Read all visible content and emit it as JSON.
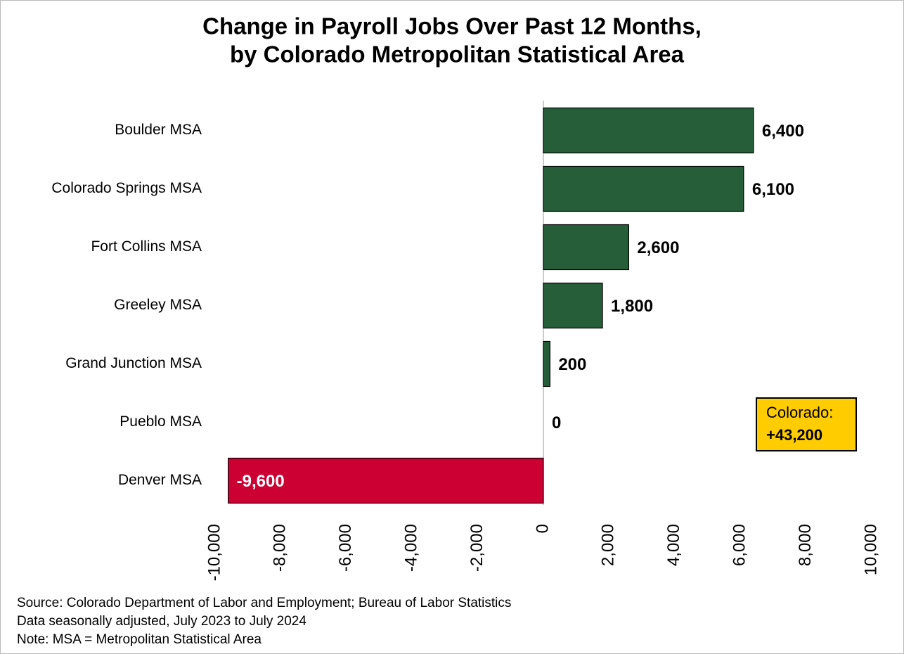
{
  "chart_data": {
    "type": "hbar",
    "title": [
      "Change in Payroll Jobs Over Past 12 Months,",
      "by Colorado Metropolitan Statistical Area"
    ],
    "categories": [
      "Boulder MSA",
      "Colorado Springs MSA",
      "Fort Collins MSA",
      "Greeley MSA",
      "Grand Junction MSA",
      "Pueblo MSA",
      "Denver MSA"
    ],
    "values": [
      6400,
      6100,
      2600,
      1800,
      200,
      0,
      -9600
    ],
    "value_labels": [
      "6,400",
      "6,100",
      "2,600",
      "1,800",
      "200",
      "0",
      "-9,600"
    ],
    "color_positive": "#265e3a",
    "color_negative": "#cc0033",
    "xlim": [
      -10000,
      10000
    ],
    "xticks": [
      {
        "value": -10000,
        "label": "-10,000"
      },
      {
        "value": -8000,
        "label": "-8,000"
      },
      {
        "value": -6000,
        "label": "-6,000"
      },
      {
        "value": -4000,
        "label": "-4,000"
      },
      {
        "value": -2000,
        "label": "-2,000"
      },
      0,
      {
        "value": 2000,
        "label": "2,000"
      },
      {
        "value": 4000,
        "label": "4,000"
      },
      {
        "value": 6000,
        "label": "6,000"
      },
      {
        "value": 8000,
        "label": "8,000"
      },
      {
        "value": 10000,
        "label": "10,000"
      }
    ],
    "annotation": [
      "Colorado:",
      "+43,200"
    ],
    "notes": [
      "Source: Colorado Department of Labor and Employment; Bureau of Labor Statistics",
      "Data seasonally adjusted, July 2023 to July 2024",
      "Note: MSA = Metropolitan Statistical Area"
    ]
  }
}
